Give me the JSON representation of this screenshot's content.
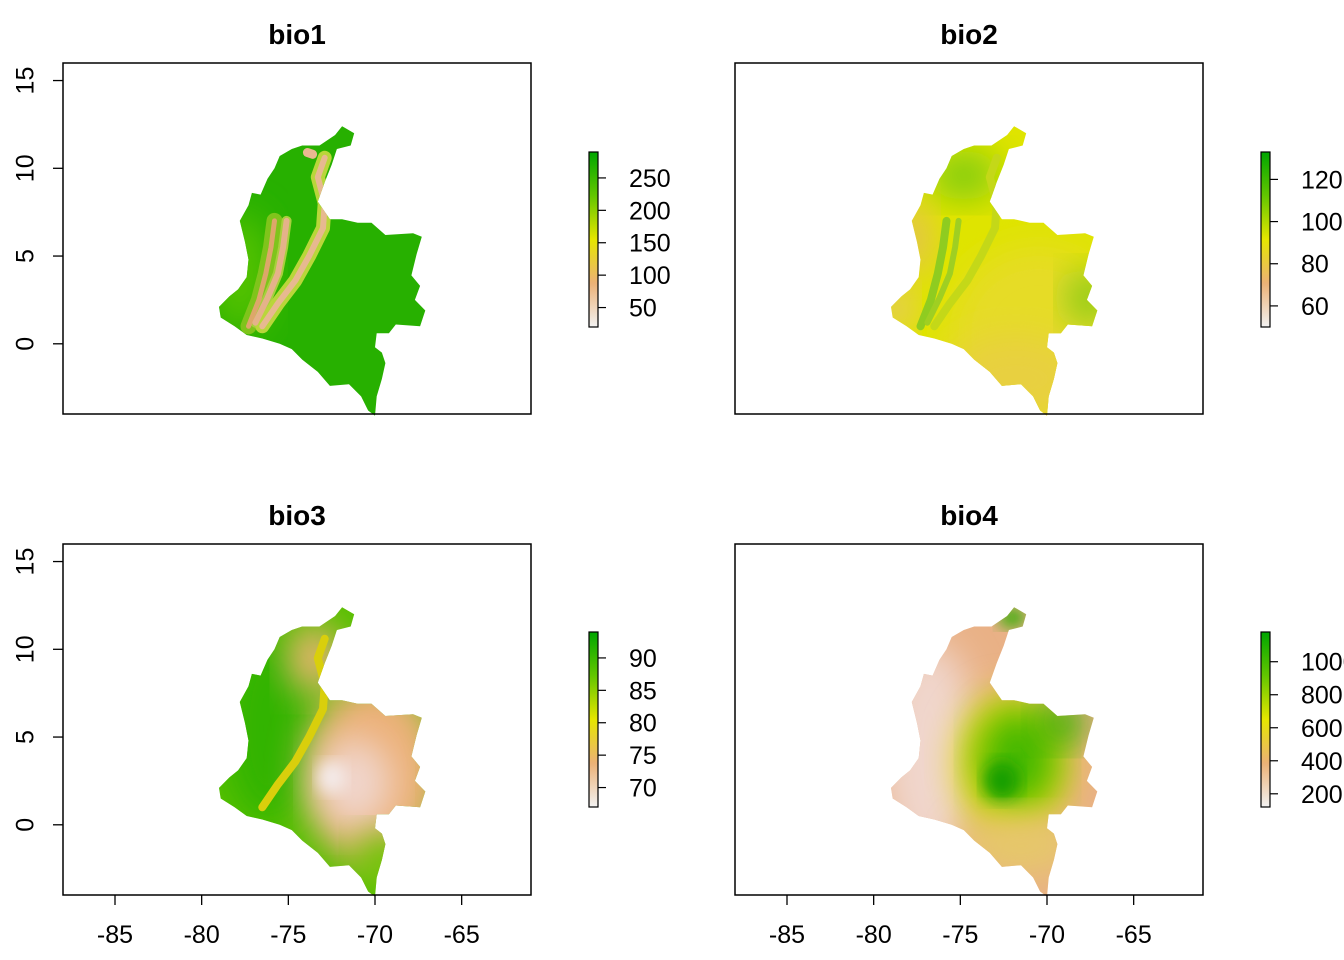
{
  "chart_data": [
    {
      "type": "heatmap",
      "title": "bio1",
      "x_range": [
        -88,
        -61
      ],
      "ylim": [
        -4,
        16
      ],
      "y_ticks": [
        "0",
        "5",
        "10",
        "15"
      ],
      "x_ticks": [],
      "legend": {
        "min": 20,
        "max": 290,
        "ticks": [
          "50",
          "100",
          "150",
          "200",
          "250"
        ]
      },
      "pattern": "lowland_high"
    },
    {
      "type": "heatmap",
      "title": "bio2",
      "x_range": [
        -88,
        -61
      ],
      "ylim": [
        -4,
        16
      ],
      "y_ticks": [],
      "x_ticks": [],
      "legend": {
        "min": 50,
        "max": 133,
        "ticks": [
          "60",
          "80",
          "100",
          "120"
        ]
      },
      "pattern": "mid_range"
    },
    {
      "type": "heatmap",
      "title": "bio3",
      "x_range": [
        -88,
        -61
      ],
      "ylim": [
        -4,
        16
      ],
      "y_ticks": [
        "0",
        "5",
        "10",
        "15"
      ],
      "x_ticks": [
        "-85",
        "-80",
        "-75",
        "-70",
        "-65"
      ],
      "legend": {
        "min": 67,
        "max": 94,
        "ticks": [
          "70",
          "75",
          "80",
          "85",
          "90"
        ]
      },
      "pattern": "west_high"
    },
    {
      "type": "heatmap",
      "title": "bio4",
      "x_range": [
        -88,
        -61
      ],
      "ylim": [
        -4,
        16
      ],
      "y_ticks": [],
      "x_ticks": [
        "-85",
        "-80",
        "-75",
        "-70",
        "-65"
      ],
      "legend": {
        "min": 120,
        "max": 1180,
        "ticks": [
          "200",
          "400",
          "600",
          "800",
          "1000"
        ]
      },
      "pattern": "east_high"
    }
  ],
  "colors": {
    "terrain": [
      "#f2f2f2",
      "#ecb176",
      "#e6e600",
      "#63c600",
      "#00a600"
    ]
  }
}
